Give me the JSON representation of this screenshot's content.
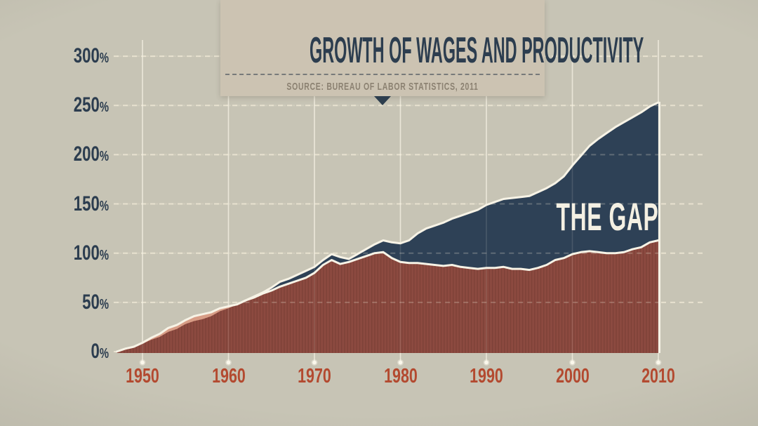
{
  "header": {
    "title": "GROWTH OF WAGES AND PRODUCTIVITY",
    "source": "SOURCE: BUREAU OF LABOR STATISTICS, 2011"
  },
  "colors": {
    "background": "#c7c4b5",
    "header_background": "#ccc3b2",
    "title_text": "#2c3d4f",
    "source_text": "#8b8171",
    "y_tick_text": "#2c3d4f",
    "x_tick_text": "#b34a30",
    "gap_text": "#f4f0e3",
    "gridline": "#efe9d6",
    "series_line": "#f7f3e6"
  },
  "chart_data": {
    "type": "area",
    "title": "GROWTH OF WAGES AND PRODUCTIVITY",
    "subtitle": "SOURCE: BUREAU OF LABOR STATISTICS, 2011",
    "gap_label": "THE GAP",
    "xlabel": "",
    "ylabel": "",
    "ylim": [
      0,
      300
    ],
    "y_ticks": [
      0,
      50,
      100,
      150,
      200,
      250,
      300
    ],
    "y_tick_suffix": "%",
    "x_ticks": [
      1950,
      1960,
      1970,
      1980,
      1990,
      2000,
      2010
    ],
    "grid": "dashed horizontal lines every 50%, solid vertical lines each decade with dot at base",
    "legend": "none",
    "x": [
      1947,
      1948,
      1949,
      1950,
      1951,
      1952,
      1953,
      1954,
      1955,
      1956,
      1957,
      1958,
      1959,
      1960,
      1961,
      1962,
      1963,
      1964,
      1965,
      1966,
      1967,
      1968,
      1969,
      1970,
      1971,
      1972,
      1973,
      1974,
      1975,
      1976,
      1977,
      1978,
      1979,
      1980,
      1981,
      1982,
      1983,
      1984,
      1985,
      1986,
      1987,
      1988,
      1989,
      1990,
      1991,
      1992,
      1993,
      1994,
      1995,
      1996,
      1997,
      1998,
      1999,
      2000,
      2001,
      2002,
      2003,
      2004,
      2005,
      2006,
      2007,
      2008,
      2009,
      2010
    ],
    "series": [
      {
        "name": "Productivity",
        "color": "#2e4156",
        "values": [
          0,
          2,
          4,
          8,
          12,
          15,
          20,
          23,
          28,
          31,
          33,
          36,
          41,
          44,
          48,
          52,
          56,
          60,
          65,
          71,
          74,
          78,
          82,
          86,
          93,
          99,
          96,
          94,
          99,
          104,
          109,
          113,
          111,
          110,
          113,
          120,
          125,
          128,
          131,
          135,
          138,
          141,
          144,
          149,
          152,
          155,
          156,
          157,
          158,
          162,
          166,
          171,
          178,
          189,
          199,
          209,
          216,
          222,
          228,
          233,
          238,
          243,
          249,
          253
        ]
      },
      {
        "name": "Wages",
        "color": "#8c4a40",
        "values": [
          0,
          3,
          5,
          9,
          14,
          18,
          24,
          27,
          32,
          36,
          38,
          40,
          44,
          46,
          48,
          52,
          55,
          59,
          62,
          66,
          69,
          72,
          75,
          80,
          88,
          93,
          89,
          91,
          94,
          97,
          100,
          101,
          95,
          91,
          90,
          90,
          89,
          88,
          87,
          88,
          86,
          85,
          84,
          85,
          85,
          86,
          84,
          84,
          83,
          85,
          88,
          93,
          95,
          99,
          101,
          102,
          101,
          100,
          100,
          101,
          104,
          106,
          111,
          113
        ]
      }
    ],
    "gap_fill_productivity_above_wages": "#2e4156",
    "fill_wages_above_productivity": "#d89d86",
    "line_color": "#f7f3e6"
  }
}
